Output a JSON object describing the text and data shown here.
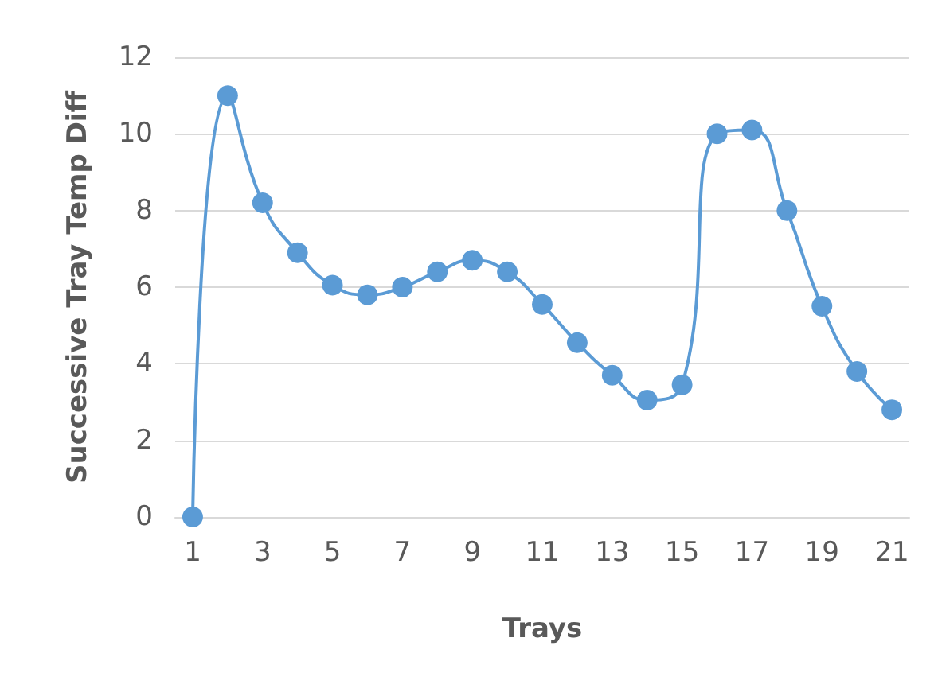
{
  "chart_data": {
    "type": "line",
    "xlabel": "Trays",
    "ylabel": "Successive Tray Temp Diff",
    "x": [
      1,
      2,
      3,
      4,
      5,
      6,
      7,
      8,
      9,
      10,
      11,
      12,
      13,
      14,
      15,
      16,
      17,
      18,
      19,
      20,
      21
    ],
    "series": [
      {
        "color": "#5b9bd5",
        "values": [
          0,
          11,
          8.2,
          6.9,
          6.05,
          5.8,
          6,
          6.4,
          6.7,
          6.4,
          5.55,
          4.55,
          3.7,
          3.05,
          3.45,
          10,
          10.1,
          8,
          5.5,
          3.8,
          2.8
        ]
      }
    ],
    "xlim": [
      0.5,
      21.5
    ],
    "xticks": [
      1,
      3,
      5,
      7,
      9,
      11,
      13,
      15,
      17,
      19,
      21
    ],
    "ylim": [
      0,
      12
    ],
    "yticks": [
      0,
      2,
      4,
      6,
      8,
      10,
      12
    ],
    "grid": "y",
    "marker": "circle",
    "line_style": "solid"
  }
}
